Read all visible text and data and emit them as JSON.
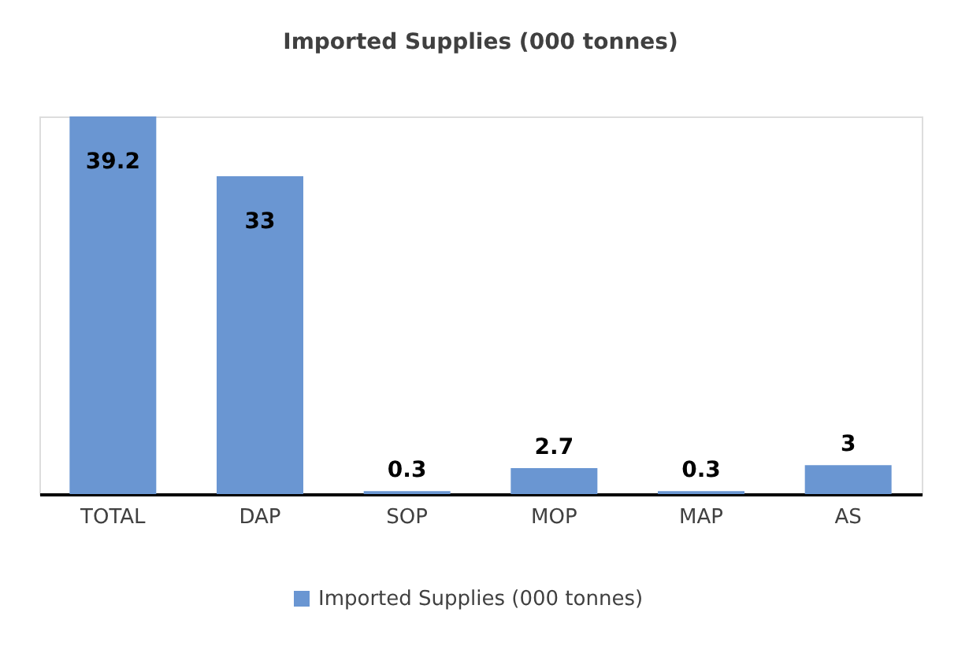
{
  "chart_data": {
    "type": "bar",
    "title": "Imported Supplies (000 tonnes)",
    "categories": [
      "TOTAL",
      "DAP",
      "SOP",
      "MOP",
      "MAP",
      "AS"
    ],
    "series": [
      {
        "name": "Imported Supplies (000 tonnes)",
        "color": "#6a96d2",
        "values": [
          39.2,
          33,
          0.3,
          2.7,
          0.3,
          3
        ]
      }
    ],
    "data_labels": true,
    "legend": "bottom"
  }
}
